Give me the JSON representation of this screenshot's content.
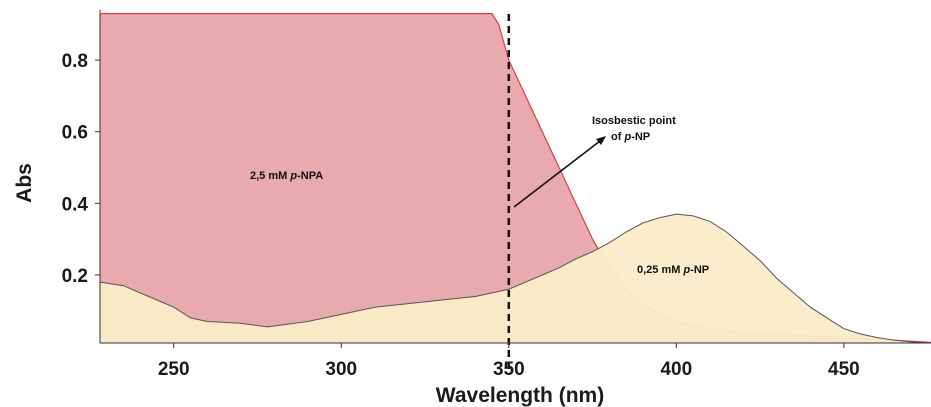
{
  "chart_data": {
    "type": "area",
    "xlabel": "Wavelength (nm)",
    "ylabel": "Abs",
    "xlim": [
      228,
      476
    ],
    "ylim": [
      0.01,
      0.94
    ],
    "x_ticks": [
      {
        "value": 250,
        "label": "250"
      },
      {
        "value": 300,
        "label": "300"
      },
      {
        "value": 350,
        "label": "350"
      },
      {
        "value": 400,
        "label": "400"
      },
      {
        "value": 450,
        "label": "450"
      }
    ],
    "y_ticks": [
      {
        "value": 0.2,
        "label": "0.2"
      },
      {
        "value": 0.4,
        "label": "0.4"
      },
      {
        "value": 0.6,
        "label": "0.6"
      },
      {
        "value": 0.8,
        "label": "0.8"
      }
    ],
    "grid": false,
    "series": [
      {
        "name": "2,5 mM p-NPA",
        "color": "#e8aaae",
        "edge_color": "#e8383f",
        "x": [
          228,
          345,
          347,
          350,
          355,
          360,
          365,
          370,
          375,
          380,
          385,
          390,
          395,
          400,
          410,
          420,
          430,
          440,
          450,
          460,
          470,
          476
        ],
        "y": [
          0.93,
          0.93,
          0.9,
          0.8,
          0.7,
          0.6,
          0.5,
          0.4,
          0.3,
          0.22,
          0.16,
          0.12,
          0.09,
          0.07,
          0.05,
          0.04,
          0.035,
          0.03,
          0.025,
          0.02,
          0.015,
          0.012
        ]
      },
      {
        "name": "0,25 mM p-NP",
        "color": "#fbecc8",
        "edge_color": "#555555",
        "x": [
          228,
          235,
          240,
          245,
          250,
          255,
          260,
          270,
          278,
          290,
          300,
          310,
          320,
          330,
          340,
          350,
          355,
          360,
          365,
          370,
          375,
          380,
          385,
          390,
          395,
          400,
          405,
          410,
          415,
          420,
          425,
          430,
          435,
          440,
          445,
          450,
          455,
          460,
          465,
          470,
          476
        ],
        "y": [
          0.18,
          0.17,
          0.15,
          0.13,
          0.11,
          0.08,
          0.07,
          0.065,
          0.055,
          0.07,
          0.09,
          0.11,
          0.12,
          0.13,
          0.14,
          0.16,
          0.18,
          0.2,
          0.22,
          0.245,
          0.265,
          0.29,
          0.32,
          0.345,
          0.36,
          0.37,
          0.365,
          0.35,
          0.32,
          0.28,
          0.24,
          0.19,
          0.15,
          0.11,
          0.08,
          0.05,
          0.035,
          0.025,
          0.018,
          0.013,
          0.01
        ]
      }
    ],
    "isosbestic_x": 350,
    "annotations": {
      "pnpa_label": {
        "prefix": "2,5 mM ",
        "italic": "p",
        "suffix": "-NPA"
      },
      "pnp_label": {
        "prefix": "0,25 mM ",
        "italic": "p",
        "suffix": "-NP"
      },
      "iso_line1": "Isosbestic point",
      "iso_line2": {
        "prefix": "of ",
        "italic": "p",
        "suffix": "-NP"
      }
    }
  }
}
